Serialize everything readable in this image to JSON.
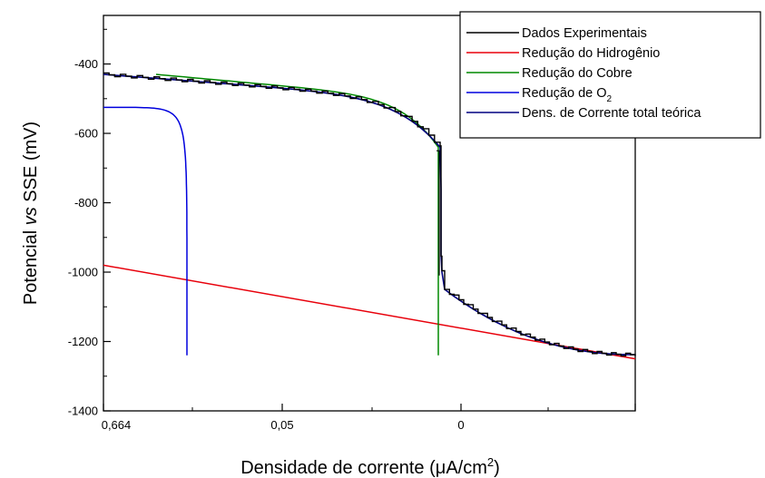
{
  "chart_data": {
    "type": "line",
    "title": "",
    "xlabel": {
      "prefix": "Densidade de corrente (",
      "greek": "μ",
      "unit": "A/cm",
      "sup": "2",
      "suffix": ")"
    },
    "ylabel": {
      "prefix": "Potencial ",
      "italic": "vs",
      "suffix": " SSE (mV)"
    },
    "x_tick_labels": [
      "0,664",
      "0,05",
      "0"
    ],
    "y_ticks": [
      -1400,
      -1200,
      -1000,
      -800,
      -600,
      -400
    ],
    "y_tick_labels": [
      "-1400",
      "-1200",
      "-1000",
      "-800",
      "-600",
      "-400"
    ],
    "ylim": [
      -1400,
      -260
    ],
    "grid": false,
    "legend_position": "top-right",
    "legend": [
      {
        "key": "exp",
        "label": "Dados Experimentais",
        "color": "#000000"
      },
      {
        "key": "h2",
        "label": "Redução do Hidrogênio",
        "color": "#e8000b"
      },
      {
        "key": "cu",
        "label": "Redução do Cobre",
        "color": "#008800"
      },
      {
        "key": "o2",
        "label": "Redução de O",
        "sub": "2",
        "color": "#0000dd"
      },
      {
        "key": "total",
        "label": "Dens. de Corrente total teórica",
        "color": "#000080"
      }
    ],
    "series_y_values": {
      "h2": {
        "start": -980,
        "end": -1250
      },
      "o2": {
        "start": -525,
        "end": -1240
      },
      "cu": {
        "start": -430,
        "end": -1240
      },
      "total": {
        "start": -430,
        "end": -1238
      },
      "exp": {
        "start": -430,
        "end": -1240
      }
    }
  }
}
